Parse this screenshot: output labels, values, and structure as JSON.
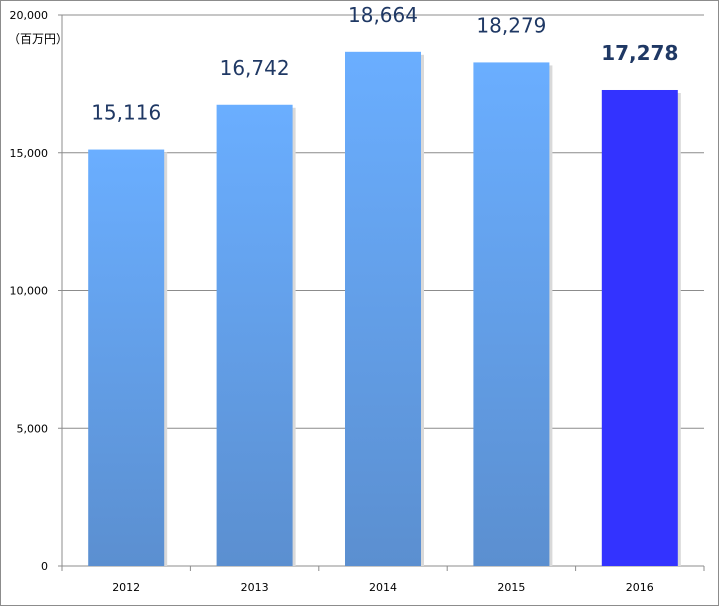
{
  "chart_data": {
    "type": "bar",
    "unit_label": "（百万円）",
    "categories": [
      "2012",
      "2013",
      "2014",
      "2015",
      "2016"
    ],
    "values": [
      15116,
      16742,
      18664,
      18279,
      17278
    ],
    "value_labels": [
      "15,116",
      "16,742",
      "18,664",
      "18,279",
      "17,278"
    ],
    "ylim": [
      0,
      20000
    ],
    "yticks": [
      0,
      5000,
      10000,
      15000,
      20000
    ],
    "ytick_labels": [
      "0",
      "5,000",
      "10,000",
      "15,000",
      "20,000"
    ],
    "grid": true,
    "highlight_index": 4,
    "colors": {
      "bar_top": "#6aaeff",
      "bar_bottom": "#5b8fd0",
      "highlight": "#3333ff",
      "label": "#1f3864",
      "grid": "#8c8c8c"
    }
  }
}
